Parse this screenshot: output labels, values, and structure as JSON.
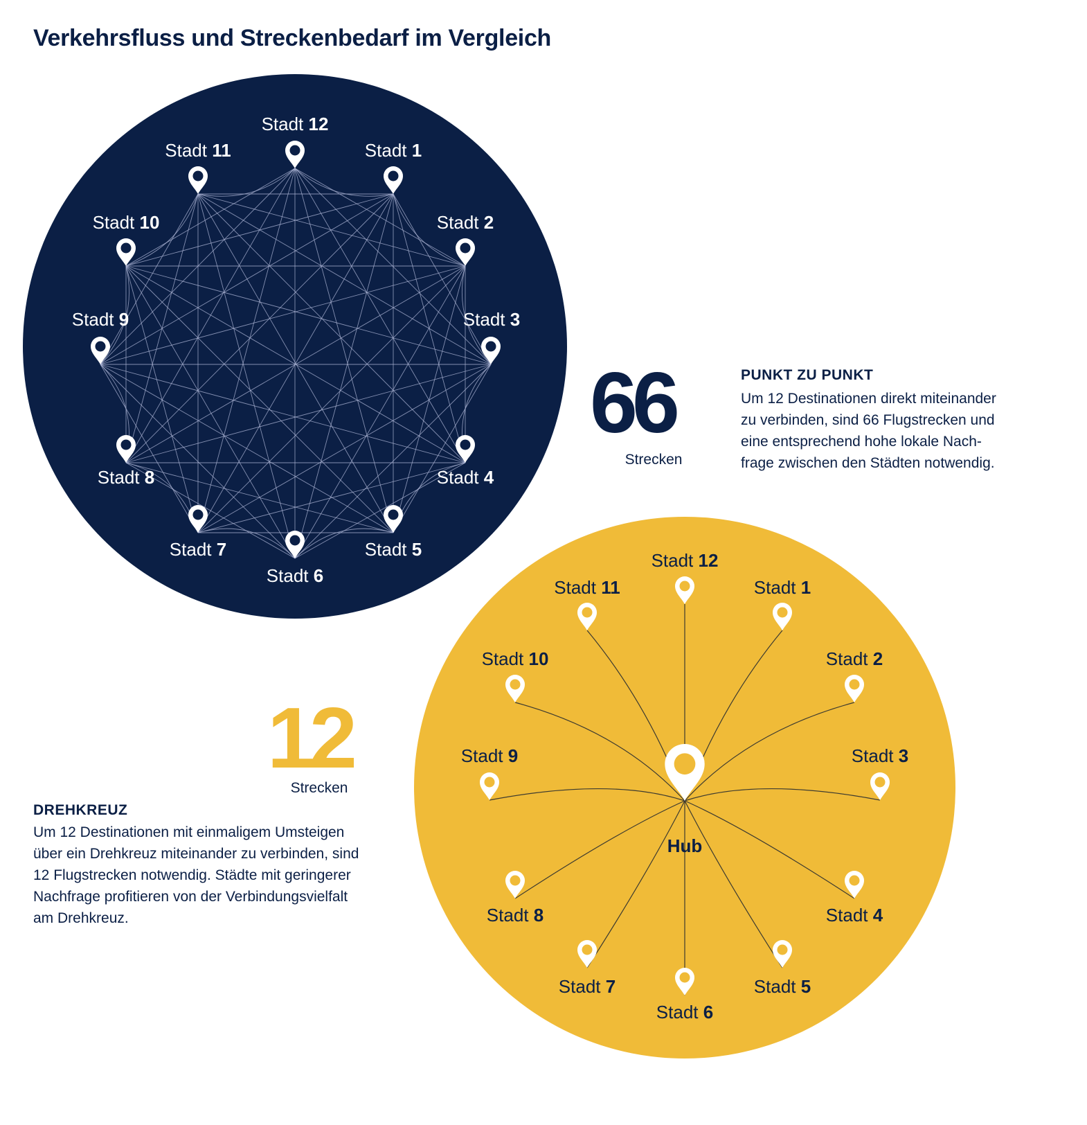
{
  "title": "Verkehrsfluss und Streckenbedarf im Vergleich",
  "colors": {
    "navy": "#0b1f45",
    "gold": "#f0bb38",
    "white": "#ffffff"
  },
  "point_to_point": {
    "count": "66",
    "unit": "Strecken",
    "heading": "PUNKT ZU PUNKT",
    "description_lines": [
      "Um 12 Destinationen direkt miteinander",
      "zu verbinden, sind 66 Flugstrecken und",
      "eine entsprechend hohe lokale Nach-",
      "frage zwischen den Städten notwendig."
    ]
  },
  "hub": {
    "count": "12",
    "unit": "Strecken",
    "heading": "DREHKREUZ",
    "hub_label": "Hub",
    "description_lines": [
      "Um 12 Destinationen mit einmaligem Umsteigen",
      "über ein Drehkreuz miteinander zu verbinden, sind",
      "12 Flugstrecken notwendig. Städte mit geringerer",
      "Nachfrage profitieren von der Verbindungsvielfalt",
      "am Drehkreuz."
    ]
  },
  "city_prefix": "Stadt",
  "cities": [
    "1",
    "2",
    "3",
    "4",
    "5",
    "6",
    "7",
    "8",
    "9",
    "10",
    "11",
    "12"
  ],
  "pin_icon": "map-pin-icon"
}
